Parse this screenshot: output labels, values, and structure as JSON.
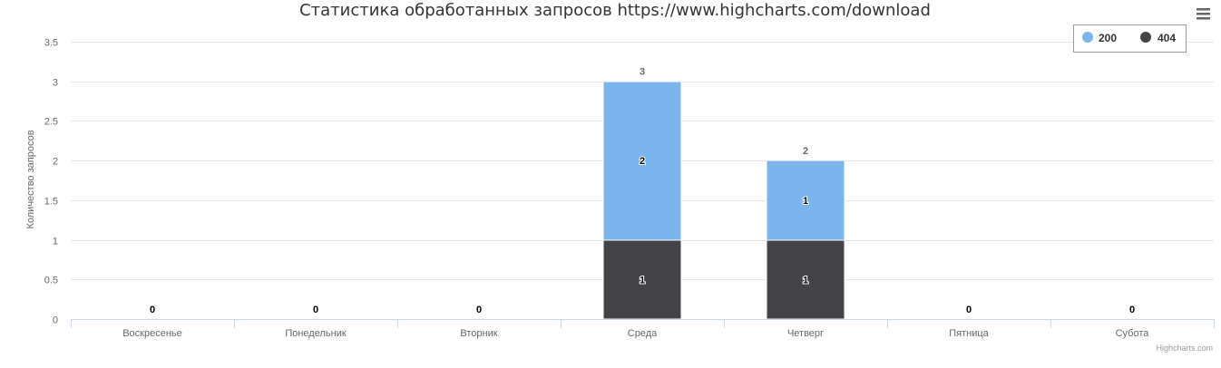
{
  "chart_data": {
    "type": "bar",
    "stacked": true,
    "title": "Статистика обработанных запросов https://www.highcharts.com/download",
    "ylabel": "Количество запросов",
    "xlabel": "",
    "categories": [
      "Воскресенье",
      "Понедельник",
      "Вторник",
      "Среда",
      "Четверг",
      "Пятница",
      "Субота"
    ],
    "series": [
      {
        "name": "200",
        "color": "#7cb5ec",
        "values": [
          0,
          0,
          0,
          2,
          1,
          0,
          0
        ]
      },
      {
        "name": "404",
        "color": "#434348",
        "values": [
          0,
          0,
          0,
          1,
          1,
          0,
          0
        ]
      }
    ],
    "totals": [
      null,
      null,
      null,
      3,
      2,
      null,
      null
    ],
    "ylim": [
      0,
      3.5
    ],
    "yticks": [
      "0",
      "0.5",
      "1",
      "1.5",
      "2",
      "2.5",
      "3",
      "3.5"
    ],
    "ytick_values": [
      0,
      0.5,
      1,
      1.5,
      2,
      2.5,
      3,
      3.5
    ],
    "grid": true,
    "legend_position": "top-right"
  },
  "credits": "Highcharts.com",
  "menu_icon": "hamburger-menu-icon"
}
